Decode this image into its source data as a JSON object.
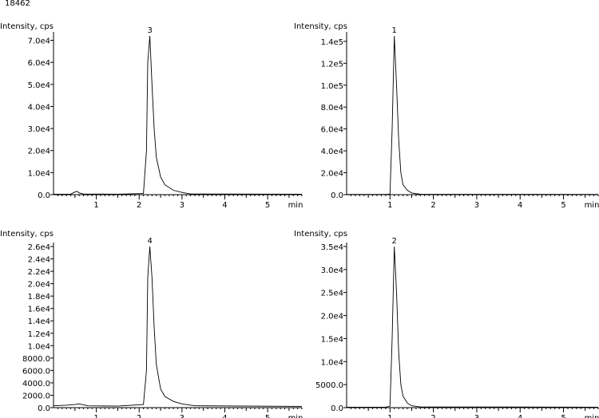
{
  "header": {
    "id_label": "18462"
  },
  "chart_data": [
    {
      "type": "line",
      "ylabel": "Intensity, cps",
      "xlabel": "min",
      "peak_label": "3",
      "xlim": [
        0,
        5.8
      ],
      "ylim": [
        0,
        72000
      ],
      "x_ticks": [
        1,
        2,
        3,
        4,
        5
      ],
      "y_ticks": [
        0,
        10000,
        20000,
        30000,
        40000,
        50000,
        60000,
        70000
      ],
      "y_tick_labels": [
        "0.0",
        "1.0e4",
        "2.0e4",
        "3.0e4",
        "4.0e4",
        "5.0e4",
        "6.0e4",
        "7.0e4"
      ],
      "series": [
        {
          "x": [
            0,
            0.4,
            0.5,
            0.55,
            0.6,
            0.7,
            1.5,
            2.1,
            2.17,
            2.2,
            2.25,
            2.3,
            2.35,
            2.4,
            2.5,
            2.6,
            2.8,
            3.0,
            3.2,
            5.8
          ],
          "y": [
            200,
            200,
            1200,
            1500,
            800,
            300,
            200,
            500,
            20000,
            60000,
            72000,
            50000,
            30000,
            17000,
            8000,
            4500,
            2000,
            1000,
            300,
            200
          ]
        }
      ]
    },
    {
      "type": "line",
      "ylabel": "Intensity, cps",
      "xlabel": "min",
      "peak_label": "1",
      "xlim": [
        0,
        5.8
      ],
      "ylim": [
        0,
        145000
      ],
      "x_ticks": [
        1,
        2,
        3,
        4,
        5
      ],
      "y_ticks": [
        0,
        20000,
        40000,
        60000,
        80000,
        100000,
        120000,
        140000
      ],
      "y_tick_labels": [
        "0.0",
        "2.0e4",
        "4.0e4",
        "6.0e4",
        "8.0e4",
        "1.0e5",
        "1.2e5",
        "1.4e5"
      ],
      "series": [
        {
          "x": [
            0,
            0.9,
            1.0,
            1.05,
            1.1,
            1.15,
            1.2,
            1.25,
            1.3,
            1.4,
            1.5,
            1.7,
            5.8
          ],
          "y": [
            200,
            200,
            500,
            60000,
            145000,
            100000,
            50000,
            20000,
            9000,
            4000,
            1500,
            400,
            200
          ]
        }
      ]
    },
    {
      "type": "line",
      "ylabel": "Intensity, cps",
      "xlabel": "min",
      "peak_label": "4",
      "xlim": [
        0,
        5.8
      ],
      "ylim": [
        0,
        26000
      ],
      "x_ticks": [
        1,
        2,
        3,
        4,
        5
      ],
      "y_ticks": [
        0,
        2000,
        4000,
        6000,
        8000,
        10000,
        12000,
        14000,
        16000,
        18000,
        20000,
        22000,
        24000,
        26000
      ],
      "y_tick_labels": [
        "0.0",
        "2000.0",
        "4000.0",
        "6000.0",
        "8000.0",
        "1.0e4",
        "1.2e4",
        "1.4e4",
        "1.6e4",
        "1.8e4",
        "2.0e4",
        "2.2e4",
        "2.4e4",
        "2.6e4"
      ],
      "series": [
        {
          "x": [
            0,
            0.3,
            0.5,
            0.6,
            0.8,
            1.5,
            2.1,
            2.17,
            2.2,
            2.25,
            2.3,
            2.35,
            2.4,
            2.5,
            2.6,
            2.8,
            3.0,
            3.3,
            5.8
          ],
          "y": [
            300,
            400,
            500,
            600,
            300,
            250,
            500,
            6000,
            21000,
            26000,
            21000,
            13000,
            7000,
            3000,
            1800,
            1000,
            600,
            300,
            200
          ]
        }
      ]
    },
    {
      "type": "line",
      "ylabel": "Intensity, cps",
      "xlabel": "min",
      "peak_label": "2",
      "xlim": [
        0,
        5.8
      ],
      "ylim": [
        0,
        35000
      ],
      "x_ticks": [
        1,
        2,
        3,
        4,
        5
      ],
      "y_ticks": [
        0,
        5000,
        10000,
        15000,
        20000,
        25000,
        30000,
        35000
      ],
      "y_tick_labels": [
        "0.0",
        "5000.0",
        "1.0e4",
        "1.5e4",
        "2.0e4",
        "2.5e4",
        "3.0e4",
        "3.5e4"
      ],
      "series": [
        {
          "x": [
            0,
            0.9,
            1.0,
            1.05,
            1.1,
            1.15,
            1.2,
            1.25,
            1.3,
            1.4,
            1.5,
            1.7,
            5.8
          ],
          "y": [
            100,
            100,
            300,
            15000,
            35000,
            25000,
            12000,
            5000,
            2500,
            1000,
            400,
            150,
            100
          ]
        }
      ]
    }
  ]
}
